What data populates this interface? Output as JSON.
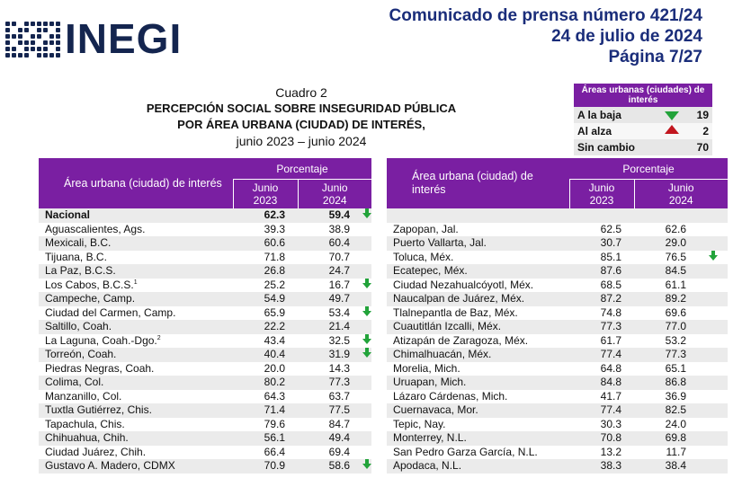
{
  "header": {
    "logo_text": "INEGI",
    "press_release": "Comunicado de prensa número 421/24",
    "date": "24 de julio de 2024",
    "page": "Página 7/27"
  },
  "caption": {
    "label": "Cuadro 2",
    "title_line1": "PERCEPCIÓN SOCIAL SOBRE INSEGURIDAD PÚBLICA",
    "title_line2": "POR ÁREA URBANA (CIUDAD) DE INTERÉS,",
    "period": "junio 2023 – junio 2024"
  },
  "summary": {
    "header": "Áreas urbanas (ciudades) de interés",
    "rows": [
      {
        "label": "A la baja",
        "icon": "arrow-down-icon",
        "value": "19"
      },
      {
        "label": "Al alza",
        "icon": "arrow-up-icon",
        "value": "2"
      },
      {
        "label": "Sin cambio",
        "icon": "",
        "value": "70"
      }
    ]
  },
  "table_headers": {
    "area": "Área urbana (ciudad) de interés",
    "percent": "Porcentaje",
    "col1_line1": "Junio",
    "col1_line2": "2023",
    "col2_line1": "Junio",
    "col2_line2": "2024"
  },
  "left_table": [
    {
      "name": "Nacional",
      "v2023": "62.3",
      "v2024": "59.4",
      "down": true,
      "bold": true
    },
    {
      "name": "Aguascalientes, Ags.",
      "v2023": "39.3",
      "v2024": "38.9",
      "down": false
    },
    {
      "name": "Mexicali, B.C.",
      "v2023": "60.6",
      "v2024": "60.4",
      "down": false
    },
    {
      "name": "Tijuana, B.C.",
      "v2023": "71.8",
      "v2024": "70.7",
      "down": false
    },
    {
      "name": "La Paz, B.C.S.",
      "v2023": "26.8",
      "v2024": "24.7",
      "down": false
    },
    {
      "name": "Los Cabos, B.C.S.",
      "sup": "1",
      "v2023": "25.2",
      "v2024": "16.7",
      "down": true
    },
    {
      "name": "Campeche, Camp.",
      "v2023": "54.9",
      "v2024": "49.7",
      "down": false
    },
    {
      "name": "Ciudad del Carmen, Camp.",
      "v2023": "65.9",
      "v2024": "53.4",
      "down": true
    },
    {
      "name": "Saltillo, Coah.",
      "v2023": "22.2",
      "v2024": "21.4",
      "down": false
    },
    {
      "name": "La Laguna, Coah.-Dgo.",
      "sup": "2",
      "v2023": "43.4",
      "v2024": "32.5",
      "down": true
    },
    {
      "name": "Torreón, Coah.",
      "v2023": "40.4",
      "v2024": "31.9",
      "down": true
    },
    {
      "name": "Piedras Negras, Coah.",
      "v2023": "20.0",
      "v2024": "14.3",
      "down": false
    },
    {
      "name": "Colima, Col.",
      "v2023": "80.2",
      "v2024": "77.3",
      "down": false
    },
    {
      "name": "Manzanillo, Col.",
      "v2023": "64.3",
      "v2024": "63.7",
      "down": false
    },
    {
      "name": "Tuxtla Gutiérrez, Chis.",
      "v2023": "71.4",
      "v2024": "77.5",
      "down": false
    },
    {
      "name": "Tapachula, Chis.",
      "v2023": "79.6",
      "v2024": "84.7",
      "down": false
    },
    {
      "name": "Chihuahua, Chih.",
      "v2023": "56.1",
      "v2024": "49.4",
      "down": false
    },
    {
      "name": "Ciudad Juárez, Chih.",
      "v2023": "66.4",
      "v2024": "69.4",
      "down": false
    },
    {
      "name": "Gustavo A. Madero, CDMX",
      "v2023": "70.9",
      "v2024": "58.6",
      "down": true
    }
  ],
  "right_table": [
    {
      "name": "",
      "v2023": "",
      "v2024": "",
      "down": false
    },
    {
      "name": "Zapopan, Jal.",
      "v2023": "62.5",
      "v2024": "62.6",
      "down": false
    },
    {
      "name": "Puerto Vallarta, Jal.",
      "v2023": "30.7",
      "v2024": "29.0",
      "down": false
    },
    {
      "name": "Toluca, Méx.",
      "v2023": "85.1",
      "v2024": "76.5",
      "down": true
    },
    {
      "name": "Ecatepec, Méx.",
      "v2023": "87.6",
      "v2024": "84.5",
      "down": false
    },
    {
      "name": "Ciudad Nezahualcóyotl, Méx.",
      "v2023": "68.5",
      "v2024": "61.1",
      "down": false
    },
    {
      "name": "Naucalpan de Juárez, Méx.",
      "v2023": "87.2",
      "v2024": "89.2",
      "down": false
    },
    {
      "name": "Tlalnepantla de Baz, Méx.",
      "v2023": "74.8",
      "v2024": "69.6",
      "down": false
    },
    {
      "name": "Cuautitlán Izcalli, Méx.",
      "v2023": "77.3",
      "v2024": "77.0",
      "down": false
    },
    {
      "name": "Atizapán de Zaragoza, Méx.",
      "v2023": "61.7",
      "v2024": "53.2",
      "down": false
    },
    {
      "name": "Chimalhuacán, Méx.",
      "v2023": "77.4",
      "v2024": "77.3",
      "down": false
    },
    {
      "name": "Morelia, Mich.",
      "v2023": "64.8",
      "v2024": "65.1",
      "down": false
    },
    {
      "name": "Uruapan, Mich.",
      "v2023": "84.8",
      "v2024": "86.8",
      "down": false
    },
    {
      "name": "Lázaro Cárdenas, Mich.",
      "v2023": "41.7",
      "v2024": "36.9",
      "down": false
    },
    {
      "name": "Cuernavaca, Mor.",
      "v2023": "77.4",
      "v2024": "82.5",
      "down": false
    },
    {
      "name": "Tepic, Nay.",
      "v2023": "30.3",
      "v2024": "24.0",
      "down": false
    },
    {
      "name": "Monterrey, N.L.",
      "v2023": "70.8",
      "v2024": "69.8",
      "down": false
    },
    {
      "name": "San Pedro Garza García, N.L.",
      "v2023": "13.2",
      "v2024": "11.7",
      "down": false
    },
    {
      "name": "Apodaca, N.L.",
      "v2023": "38.3",
      "v2024": "38.4",
      "down": false
    }
  ],
  "colors": {
    "header_purple": "#7a1fa2",
    "brand_navy": "#14254f",
    "press_blue": "#1a2d7a",
    "down_green": "#22a33a",
    "up_red": "#c2161f"
  }
}
